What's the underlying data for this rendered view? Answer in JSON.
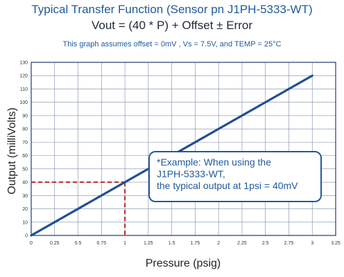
{
  "title": "Typical Transfer Function (Sensor pn J1PH-5333-WT)",
  "formula": "Vout = (40 * P) + Offset ± Error",
  "assumption": "This graph assumes offset = 0mV , Vs = 7.5V,  and TEMP = 25°C",
  "callout": {
    "line1": "*Example:  When using the",
    "line2": "J1PH-5333-WT,",
    "line3": "the typical output at 1psi = 40mV"
  },
  "colors": {
    "line": "#1f4e96",
    "dashed": "#c0392b",
    "grid": "#7a8aa8",
    "title": "#1f5a9e"
  },
  "chart_data": {
    "type": "line",
    "xlabel": "Pressure (psig)",
    "ylabel": "Output (milliVolts)",
    "xlim": [
      0,
      3.25
    ],
    "ylim": [
      0,
      130
    ],
    "xticks": [
      "0",
      "0.25",
      "0.5",
      "0.75",
      "1",
      "1.25",
      "1.5",
      "1.75",
      "2",
      "2.25",
      "2.5",
      "2.75",
      "3",
      "3.25"
    ],
    "yticks": [
      "0",
      "10",
      "20",
      "30",
      "40",
      "50",
      "60",
      "70",
      "80",
      "90",
      "100",
      "110",
      "120",
      "130"
    ],
    "grid": true,
    "series": [
      {
        "x": [
          0,
          3
        ],
        "y": [
          0,
          120
        ]
      }
    ],
    "reference_point": {
      "x": 1,
      "y": 40
    }
  }
}
